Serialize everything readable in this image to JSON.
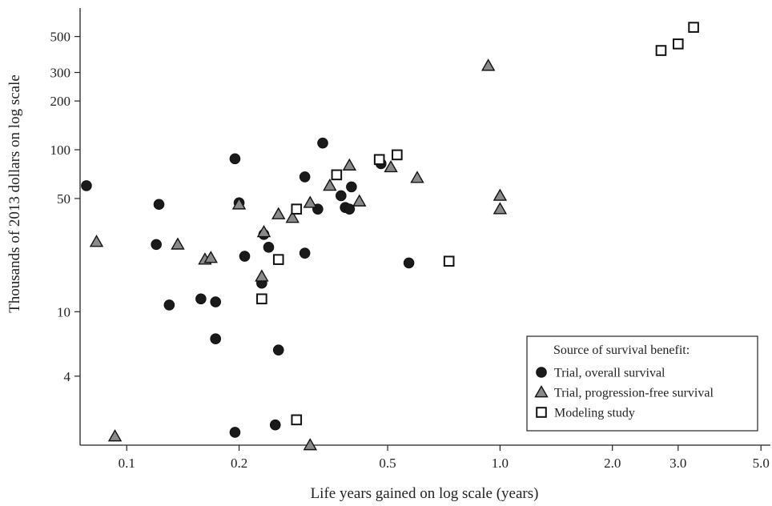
{
  "chart_data": {
    "type": "scatter",
    "title": "",
    "xlabel": "Life years gained on log scale (years)",
    "ylabel": "Thousands of 2013 dollars on log scale",
    "xscale": "log",
    "yscale": "log",
    "xlim": [
      0.075,
      5.3
    ],
    "ylim": [
      1.5,
      750
    ],
    "x_ticks": [
      0.1,
      0.2,
      0.5,
      1.0,
      2.0,
      3.0,
      5.0
    ],
    "x_tick_labels": [
      "0.1",
      "0.2",
      "0.5",
      "1.0",
      "2.0",
      "3.0",
      "5.0"
    ],
    "y_ticks": [
      4,
      10,
      50,
      100,
      200,
      300,
      500
    ],
    "y_tick_labels": [
      "4",
      "10",
      "50",
      "100",
      "200",
      "300",
      "500"
    ],
    "grid": false,
    "legend_title": "Source of survival benefit:",
    "legend_position": "bottom-right",
    "series": [
      {
        "name": "Trial, overall survival",
        "marker": "circle",
        "color": "#1a1a1a",
        "points": [
          {
            "x": 0.078,
            "y": 60
          },
          {
            "x": 0.12,
            "y": 26
          },
          {
            "x": 0.122,
            "y": 46
          },
          {
            "x": 0.13,
            "y": 11
          },
          {
            "x": 0.158,
            "y": 12
          },
          {
            "x": 0.173,
            "y": 11.5
          },
          {
            "x": 0.173,
            "y": 6.8
          },
          {
            "x": 0.195,
            "y": 88
          },
          {
            "x": 0.2,
            "y": 47
          },
          {
            "x": 0.207,
            "y": 22
          },
          {
            "x": 0.23,
            "y": 15
          },
          {
            "x": 0.233,
            "y": 30
          },
          {
            "x": 0.24,
            "y": 25
          },
          {
            "x": 0.255,
            "y": 5.8
          },
          {
            "x": 0.195,
            "y": 1.8
          },
          {
            "x": 0.25,
            "y": 2.0
          },
          {
            "x": 0.3,
            "y": 68
          },
          {
            "x": 0.3,
            "y": 23
          },
          {
            "x": 0.325,
            "y": 43
          },
          {
            "x": 0.335,
            "y": 110
          },
          {
            "x": 0.375,
            "y": 52
          },
          {
            "x": 0.385,
            "y": 44
          },
          {
            "x": 0.395,
            "y": 43
          },
          {
            "x": 0.4,
            "y": 59
          },
          {
            "x": 0.48,
            "y": 82
          },
          {
            "x": 0.57,
            "y": 20
          }
        ]
      },
      {
        "name": "Trial, progression-free survival",
        "marker": "triangle",
        "color": "#8a8a8a",
        "points": [
          {
            "x": 0.083,
            "y": 27
          },
          {
            "x": 0.093,
            "y": 1.7
          },
          {
            "x": 0.137,
            "y": 26
          },
          {
            "x": 0.162,
            "y": 21
          },
          {
            "x": 0.168,
            "y": 21.5
          },
          {
            "x": 0.2,
            "y": 46
          },
          {
            "x": 0.23,
            "y": 16.5
          },
          {
            "x": 0.233,
            "y": 31
          },
          {
            "x": 0.255,
            "y": 40
          },
          {
            "x": 0.278,
            "y": 38
          },
          {
            "x": 0.31,
            "y": 47
          },
          {
            "x": 0.31,
            "y": 1.5
          },
          {
            "x": 0.35,
            "y": 60
          },
          {
            "x": 0.395,
            "y": 80
          },
          {
            "x": 0.42,
            "y": 48
          },
          {
            "x": 0.51,
            "y": 78
          },
          {
            "x": 0.6,
            "y": 67
          },
          {
            "x": 0.93,
            "y": 330
          },
          {
            "x": 1.0,
            "y": 52
          },
          {
            "x": 1.0,
            "y": 43
          }
        ]
      },
      {
        "name": "Modeling study",
        "marker": "square",
        "color": "#ffffff",
        "points": [
          {
            "x": 0.23,
            "y": 12
          },
          {
            "x": 0.255,
            "y": 21
          },
          {
            "x": 0.285,
            "y": 43
          },
          {
            "x": 0.285,
            "y": 2.15
          },
          {
            "x": 0.365,
            "y": 70
          },
          {
            "x": 0.475,
            "y": 87
          },
          {
            "x": 0.53,
            "y": 93
          },
          {
            "x": 0.73,
            "y": 20.5
          },
          {
            "x": 2.7,
            "y": 410
          },
          {
            "x": 3.0,
            "y": 450
          },
          {
            "x": 3.3,
            "y": 570
          }
        ]
      }
    ]
  }
}
